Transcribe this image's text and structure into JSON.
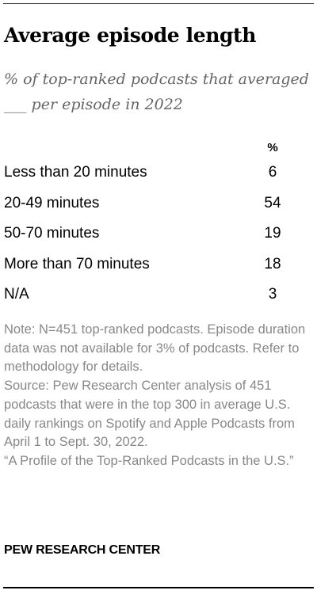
{
  "title": "Average episode length",
  "subtitle": "% of top-ranked podcasts that averaged ___ per episode in 2022",
  "chart_data": {
    "type": "table",
    "column_header": "%",
    "rows": [
      {
        "label": "Less than 20 minutes",
        "value": 6
      },
      {
        "label": "20-49 minutes",
        "value": 54
      },
      {
        "label": "50-70 minutes",
        "value": 19
      },
      {
        "label": "More than 70 minutes",
        "value": 18
      },
      {
        "label": "N/A",
        "value": 3
      }
    ]
  },
  "note": "Note: N=451 top-ranked podcasts. Episode duration data was not available for 3% of podcasts. Refer to methodology for details.",
  "source": "Source: Pew Research Center analysis of 451 podcasts that were in the top 300 in average U.S. daily rankings on Spotify and Apple Podcasts from April 1 to Sept. 30, 2022.",
  "report": "“A Profile of the Top-Ranked Podcasts in the U.S.”",
  "footer": "PEW RESEARCH CENTER",
  "colors": {
    "text": "#000000",
    "subtitle": "#666666",
    "notes": "#888888"
  }
}
